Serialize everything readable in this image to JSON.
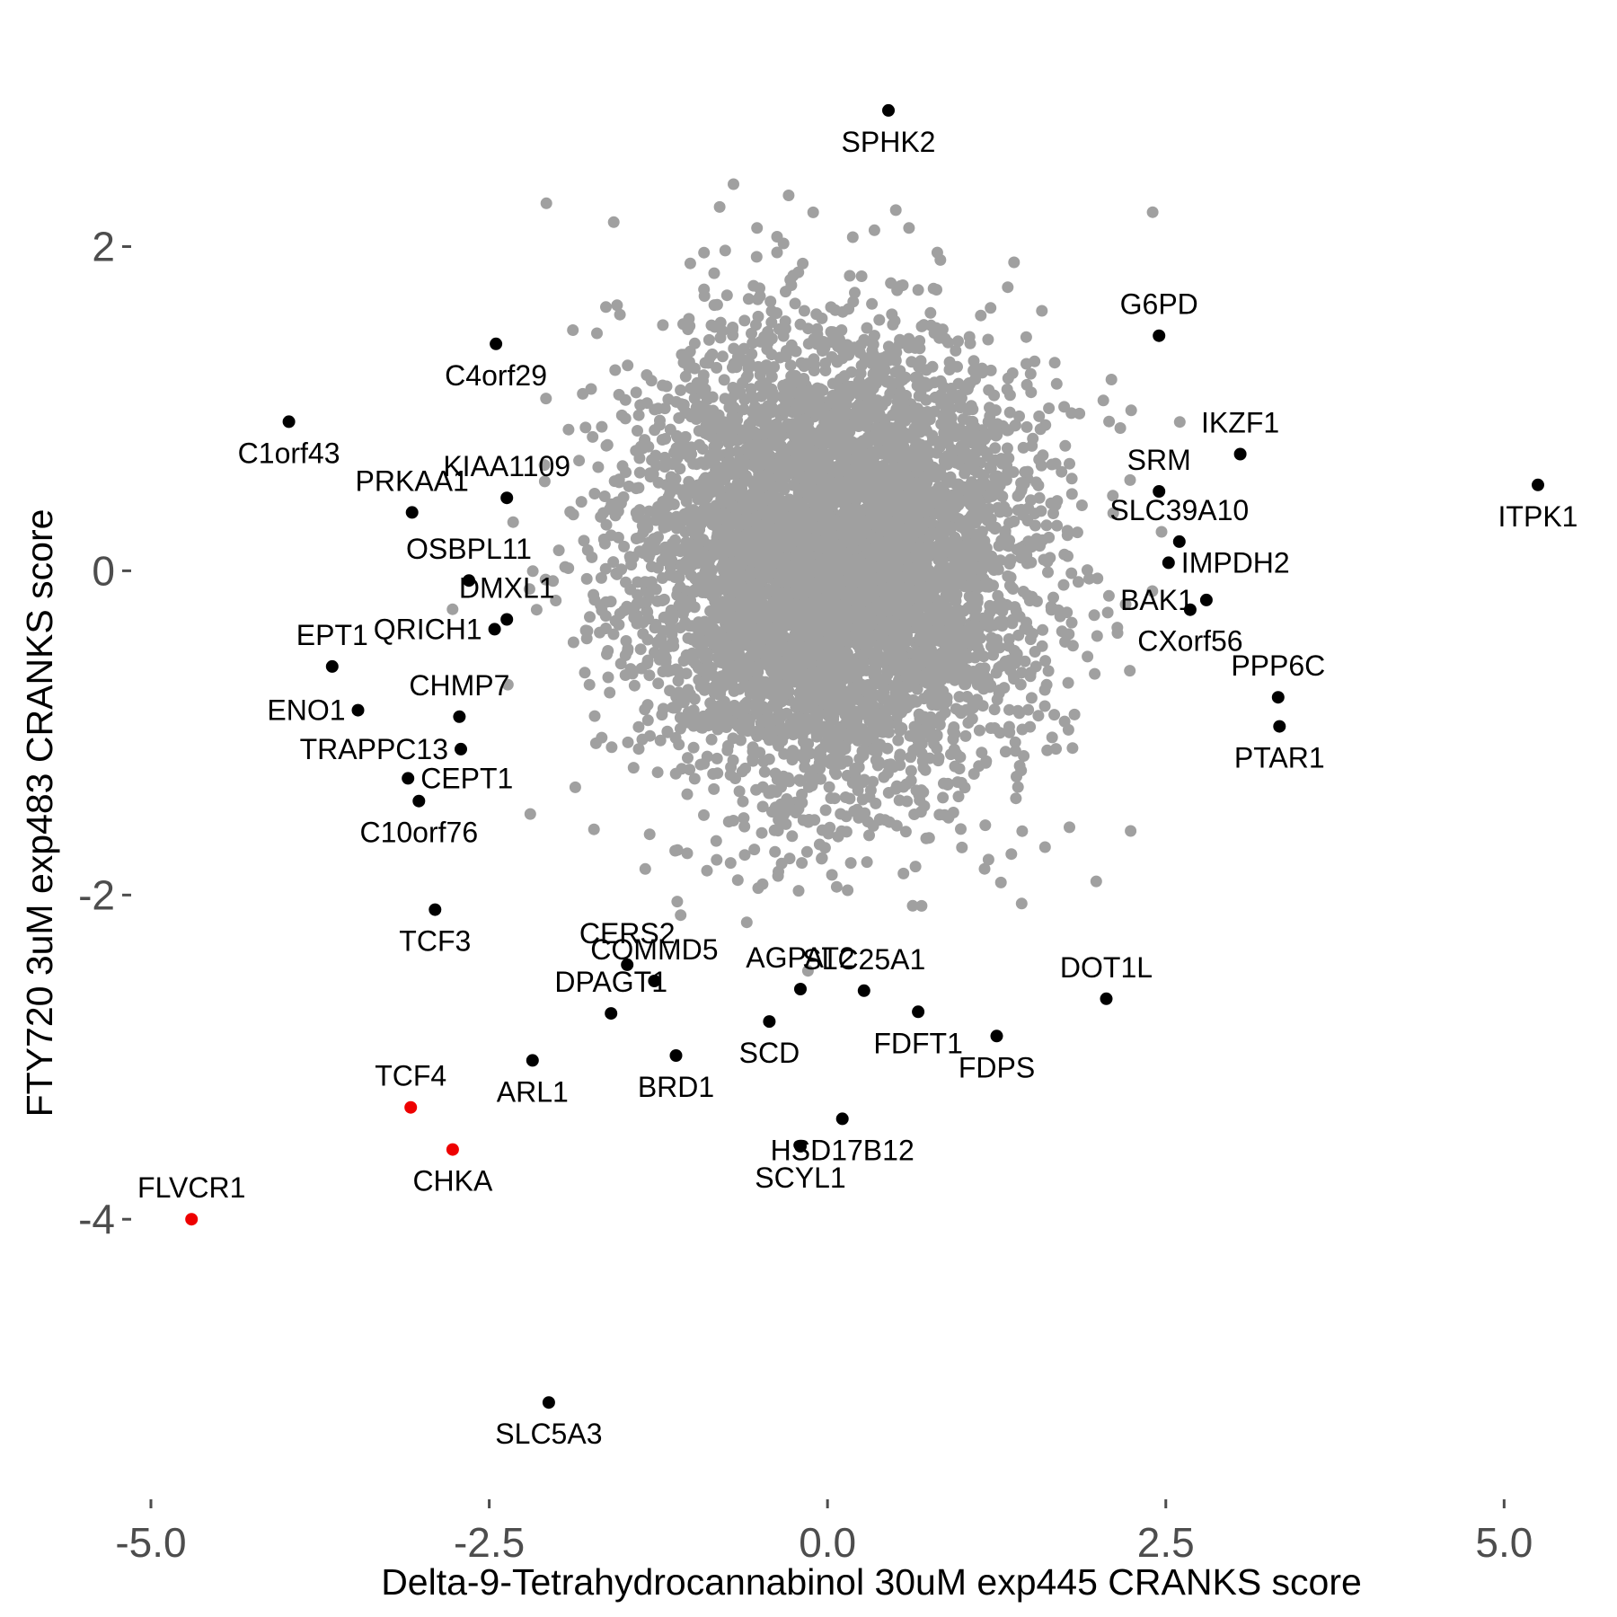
{
  "chart_data": {
    "type": "scatter",
    "xlabel": "Delta-9-Tetrahydrocannabinol 30uM exp445 CRANKS score",
    "ylabel": "FTY720 3uM exp483 CRANKS score",
    "xlim": [
      -5.0,
      5.25
    ],
    "ylim": [
      -5.65,
      3.05
    ],
    "x_ticks": [
      -5.0,
      -2.5,
      0.0,
      2.5,
      5.0
    ],
    "x_tick_labels": [
      "-5.0",
      "-2.5",
      "0.0",
      "2.5",
      "5.0"
    ],
    "y_ticks": [
      2,
      0,
      -2,
      -4
    ],
    "y_tick_labels": [
      "2",
      "0",
      "-2",
      "-4"
    ],
    "grid": false,
    "background_color": "#ffffff",
    "background_points_color": "#a0a0a0",
    "background_points_note_count": 6000,
    "highlight_colors": {
      "black": "#000000",
      "red": "#ee0000"
    },
    "labeled_points": [
      {
        "gene": "SPHK2",
        "x": 0.45,
        "y": 2.84,
        "color": "#000000",
        "label_pos": "below"
      },
      {
        "gene": "G6PD",
        "x": 2.45,
        "y": 1.45,
        "color": "#000000",
        "label_pos": "above"
      },
      {
        "gene": "C4orf29",
        "x": -2.45,
        "y": 1.4,
        "color": "#000000",
        "label_pos": "below"
      },
      {
        "gene": "C1orf43",
        "x": -3.98,
        "y": 0.92,
        "color": "#000000",
        "label_pos": "below"
      },
      {
        "gene": "IKZF1",
        "x": 3.05,
        "y": 0.72,
        "color": "#000000",
        "label_pos": "above"
      },
      {
        "gene": "ITPK1",
        "x": 5.25,
        "y": 0.53,
        "color": "#000000",
        "label_pos": "below"
      },
      {
        "gene": "SRM",
        "x": 2.45,
        "y": 0.49,
        "color": "#000000",
        "label_pos": "above"
      },
      {
        "gene": "KIAA1109",
        "x": -2.37,
        "y": 0.45,
        "color": "#000000",
        "label_pos": "above"
      },
      {
        "gene": "PRKAA1",
        "x": -3.07,
        "y": 0.36,
        "color": "#000000",
        "label_pos": "above"
      },
      {
        "gene": "SLC39A10",
        "x": 2.6,
        "y": 0.18,
        "color": "#000000",
        "label_pos": "above"
      },
      {
        "gene": "IMPDH2",
        "x": 2.52,
        "y": 0.05,
        "color": "#000000",
        "label_pos": "right"
      },
      {
        "gene": "OSBPL11",
        "x": -2.65,
        "y": -0.06,
        "color": "#000000",
        "label_pos": "above"
      },
      {
        "gene": "BAK1",
        "x": 2.8,
        "y": -0.18,
        "color": "#000000",
        "label_pos": "left"
      },
      {
        "gene": "CXorf56",
        "x": 2.68,
        "y": -0.24,
        "color": "#000000",
        "label_pos": "below"
      },
      {
        "gene": "DMXL1",
        "x": -2.37,
        "y": -0.3,
        "color": "#000000",
        "label_pos": "above"
      },
      {
        "gene": "QRICH1",
        "x": -2.46,
        "y": -0.36,
        "color": "#000000",
        "label_pos": "left"
      },
      {
        "gene": "EPT1",
        "x": -3.66,
        "y": -0.59,
        "color": "#000000",
        "label_pos": "above"
      },
      {
        "gene": "PPP6C",
        "x": 3.33,
        "y": -0.78,
        "color": "#000000",
        "label_pos": "above"
      },
      {
        "gene": "ENO1",
        "x": -3.47,
        "y": -0.86,
        "color": "#000000",
        "label_pos": "left"
      },
      {
        "gene": "CHMP7",
        "x": -2.72,
        "y": -0.9,
        "color": "#000000",
        "label_pos": "above"
      },
      {
        "gene": "PTAR1",
        "x": 3.34,
        "y": -0.96,
        "color": "#000000",
        "label_pos": "below"
      },
      {
        "gene": "TRAPPC13",
        "x": -2.71,
        "y": -1.1,
        "color": "#000000",
        "label_pos": "left"
      },
      {
        "gene": "CEPT1",
        "x": -3.1,
        "y": -1.28,
        "color": "#000000",
        "label_pos": "right"
      },
      {
        "gene": "C10orf76",
        "x": -3.02,
        "y": -1.42,
        "color": "#000000",
        "label_pos": "below"
      },
      {
        "gene": "TCF3",
        "x": -2.9,
        "y": -2.09,
        "color": "#000000",
        "label_pos": "below"
      },
      {
        "gene": "CERS2",
        "x": -1.48,
        "y": -2.43,
        "color": "#000000",
        "label_pos": "above"
      },
      {
        "gene": "COMMD5",
        "x": -1.28,
        "y": -2.53,
        "color": "#000000",
        "label_pos": "above"
      },
      {
        "gene": "AGPAT2",
        "x": -0.2,
        "y": -2.58,
        "color": "#000000",
        "label_pos": "above"
      },
      {
        "gene": "SLC25A1",
        "x": 0.27,
        "y": -2.59,
        "color": "#000000",
        "label_pos": "above"
      },
      {
        "gene": "DOT1L",
        "x": 2.06,
        "y": -2.64,
        "color": "#000000",
        "label_pos": "above"
      },
      {
        "gene": "FDFT1",
        "x": 0.67,
        "y": -2.72,
        "color": "#000000",
        "label_pos": "below"
      },
      {
        "gene": "DPAGT1",
        "x": -1.6,
        "y": -2.73,
        "color": "#000000",
        "label_pos": "above"
      },
      {
        "gene": "SCD",
        "x": -0.43,
        "y": -2.78,
        "color": "#000000",
        "label_pos": "below"
      },
      {
        "gene": "FDPS",
        "x": 1.25,
        "y": -2.87,
        "color": "#000000",
        "label_pos": "below"
      },
      {
        "gene": "BRD1",
        "x": -1.12,
        "y": -2.99,
        "color": "#000000",
        "label_pos": "below"
      },
      {
        "gene": "ARL1",
        "x": -2.18,
        "y": -3.02,
        "color": "#000000",
        "label_pos": "below"
      },
      {
        "gene": "TCF4",
        "x": -3.08,
        "y": -3.31,
        "color": "#ee0000",
        "label_pos": "above"
      },
      {
        "gene": "HSD17B12",
        "x": 0.11,
        "y": -3.38,
        "color": "#000000",
        "label_pos": "below"
      },
      {
        "gene": "CHKA",
        "x": -2.77,
        "y": -3.57,
        "color": "#ee0000",
        "label_pos": "below"
      },
      {
        "gene": "SCYL1",
        "x": -0.2,
        "y": -3.55,
        "color": "#000000",
        "label_pos": "below"
      },
      {
        "gene": "FLVCR1",
        "x": -4.7,
        "y": -4.0,
        "color": "#ee0000",
        "label_pos": "above"
      },
      {
        "gene": "SLC5A3",
        "x": -2.06,
        "y": -5.13,
        "color": "#000000",
        "label_pos": "below"
      }
    ]
  }
}
